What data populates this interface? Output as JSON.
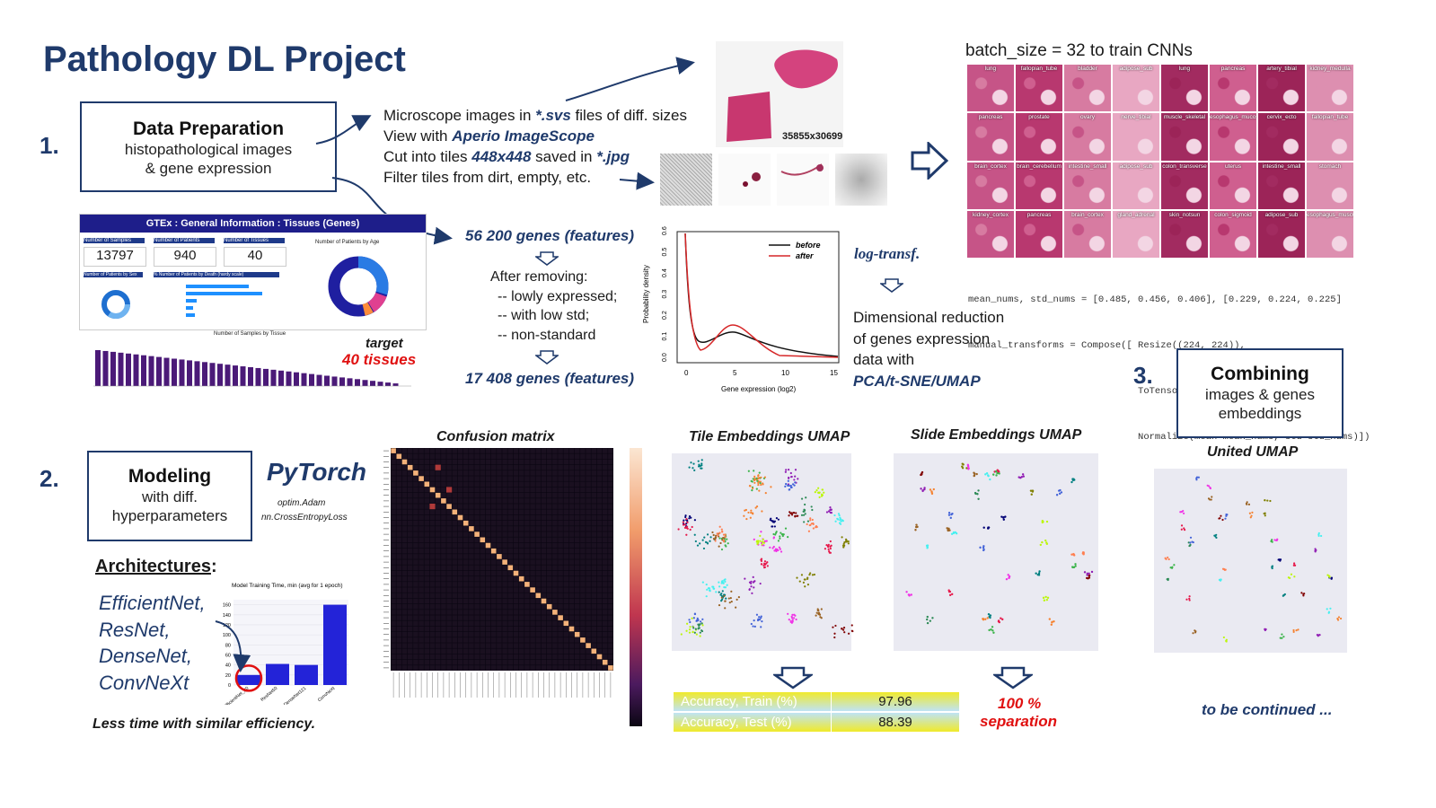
{
  "title": "Pathology DL Project",
  "step1": {
    "number": "1.",
    "box_title": "Data Preparation",
    "box_sub1": "histopathological images",
    "box_sub2": "& gene expression",
    "lines": [
      {
        "pre": "Microscope images in ",
        "em": "*.svs",
        "post": " files of diff. sizes"
      },
      {
        "pre": "View with ",
        "em": "Aperio ImageScope",
        "post": ""
      },
      {
        "pre": "Cut into tiles ",
        "em": "448x448",
        "post": " saved in ",
        "em2": "*.jpg"
      },
      {
        "pre": "Filter tiles from dirt, empty, etc.",
        "em": "",
        "post": ""
      }
    ],
    "slide_size": "35855x30699",
    "batch_label": "batch_size = 32 to train CNNs",
    "tile_labels": [
      "lung",
      "fallopian_tube",
      "bladder",
      "adipose_sub",
      "lung",
      "pancreas",
      "artery_tibial",
      "kidney_medulla",
      "pancreas",
      "prostate",
      "ovary",
      "nerve_tibial",
      "muscle_skeletal",
      "esophagus_mucosa",
      "cervix_ecto",
      "fallopian_tube",
      "brain_cortex",
      "brain_cerebellum",
      "intestine_small",
      "adipose_sub",
      "colon_transverse",
      "uterus",
      "intestine_small",
      "stomach",
      "kidney_cortex",
      "pancreas",
      "brain_cortex",
      "gland_adrenal",
      "skin_notsun",
      "colon_sigmoid",
      "adipose_sub",
      "esophagus_muscularis"
    ],
    "code_lines": [
      "mean_nums, std_nums = [0.485, 0.456, 0.406], [0.229, 0.224, 0.225]",
      "manual_transforms = Compose([ Resize((224, 224)),",
      "                              ToTensor(),",
      "                              Normalize(mean=mean_nums, std=std_nums)])"
    ],
    "dashboard": {
      "header": "GTEx : General Information : Tissues (Genes)",
      "card1_label": "Number of Samples",
      "card1_value": "13797",
      "card2_label": "Number of Patients",
      "card2_value": "940",
      "card3_label": "Number of Tissues",
      "card3_value": "40",
      "sex_label": "Number of Patients by Sex",
      "death_label": "% Number of Patients by Death (hardy scale)",
      "age_label": "Number of Patients by Age",
      "bottom_label": "Number of Samples by Tissue"
    },
    "target_label": "target",
    "target_value": "40 tissues",
    "genes_before": "56 200 genes (features)",
    "after_removing": "After removing:",
    "removing_items": [
      "-- lowly expressed;",
      "-- with low std;",
      "-- non-standard"
    ],
    "genes_after": "17 408 genes (features)",
    "density_plot": {
      "ylabel": "Probability density",
      "xlabel": "Gene expression (log2)",
      "legend_before": "before",
      "legend_after": "after",
      "xticks": [
        "0",
        "5",
        "10",
        "15"
      ],
      "yticks": [
        "0.0",
        "0.1",
        "0.2",
        "0.3",
        "0.4",
        "0.5",
        "0.6"
      ]
    },
    "log_transf": "log-transf.",
    "dimred_lines": [
      "Dimensional reduction",
      "of genes expression",
      "data with"
    ],
    "dimred_methods": "PCA/t-SNE/UMAP"
  },
  "step2": {
    "number": "2.",
    "box_title": "Modeling",
    "box_sub1": "with diff.",
    "box_sub2": "hyperparameters",
    "pytorch": "PyTorch",
    "optim": "optim.Adam",
    "loss": "nn.CrossEntropyLoss",
    "arch_heading": "Architectures",
    "arch_colon": ":",
    "architectures": [
      "EfficientNet,",
      "ResNet,",
      "DenseNet,",
      "ConvNeXt"
    ],
    "less_time": "Less time with similar efficiency.",
    "confusion_title": "Confusion matrix",
    "tile_umap_title": "Tile Embeddings UMAP",
    "slide_umap_title": "Slide Embeddings UMAP",
    "acc_train_label": "Accuracy, Train (%)",
    "acc_train_value": "97.96",
    "acc_test_label": "Accuracy, Test (%)",
    "acc_test_value": "88.39",
    "separation_value": "100 %",
    "separation_label": "separation"
  },
  "chart_data": {
    "type": "bar",
    "title": "Model Training Time, min (avg for 1 epoch)",
    "categories": [
      "EfficientNet_B0",
      "ResNet50",
      "DenseNet121",
      "ConvNeXt"
    ],
    "values": [
      20,
      42,
      40,
      160
    ],
    "ylim": [
      0,
      170
    ],
    "yticks": [
      0,
      20,
      40,
      60,
      80,
      100,
      120,
      140,
      160
    ],
    "color": "#2323d8",
    "highlight": "EfficientNet_B0"
  },
  "step3": {
    "number": "3.",
    "box_title": "Combining",
    "box_sub1": "images & genes",
    "box_sub2": "embeddings",
    "umap_title": "United UMAP",
    "continued": "to be continued ..."
  },
  "colors": {
    "navy": "#1f3a6b",
    "red": "#e01010",
    "bar_purple": "#4b1a78",
    "tile_pink": "#c2457a"
  }
}
